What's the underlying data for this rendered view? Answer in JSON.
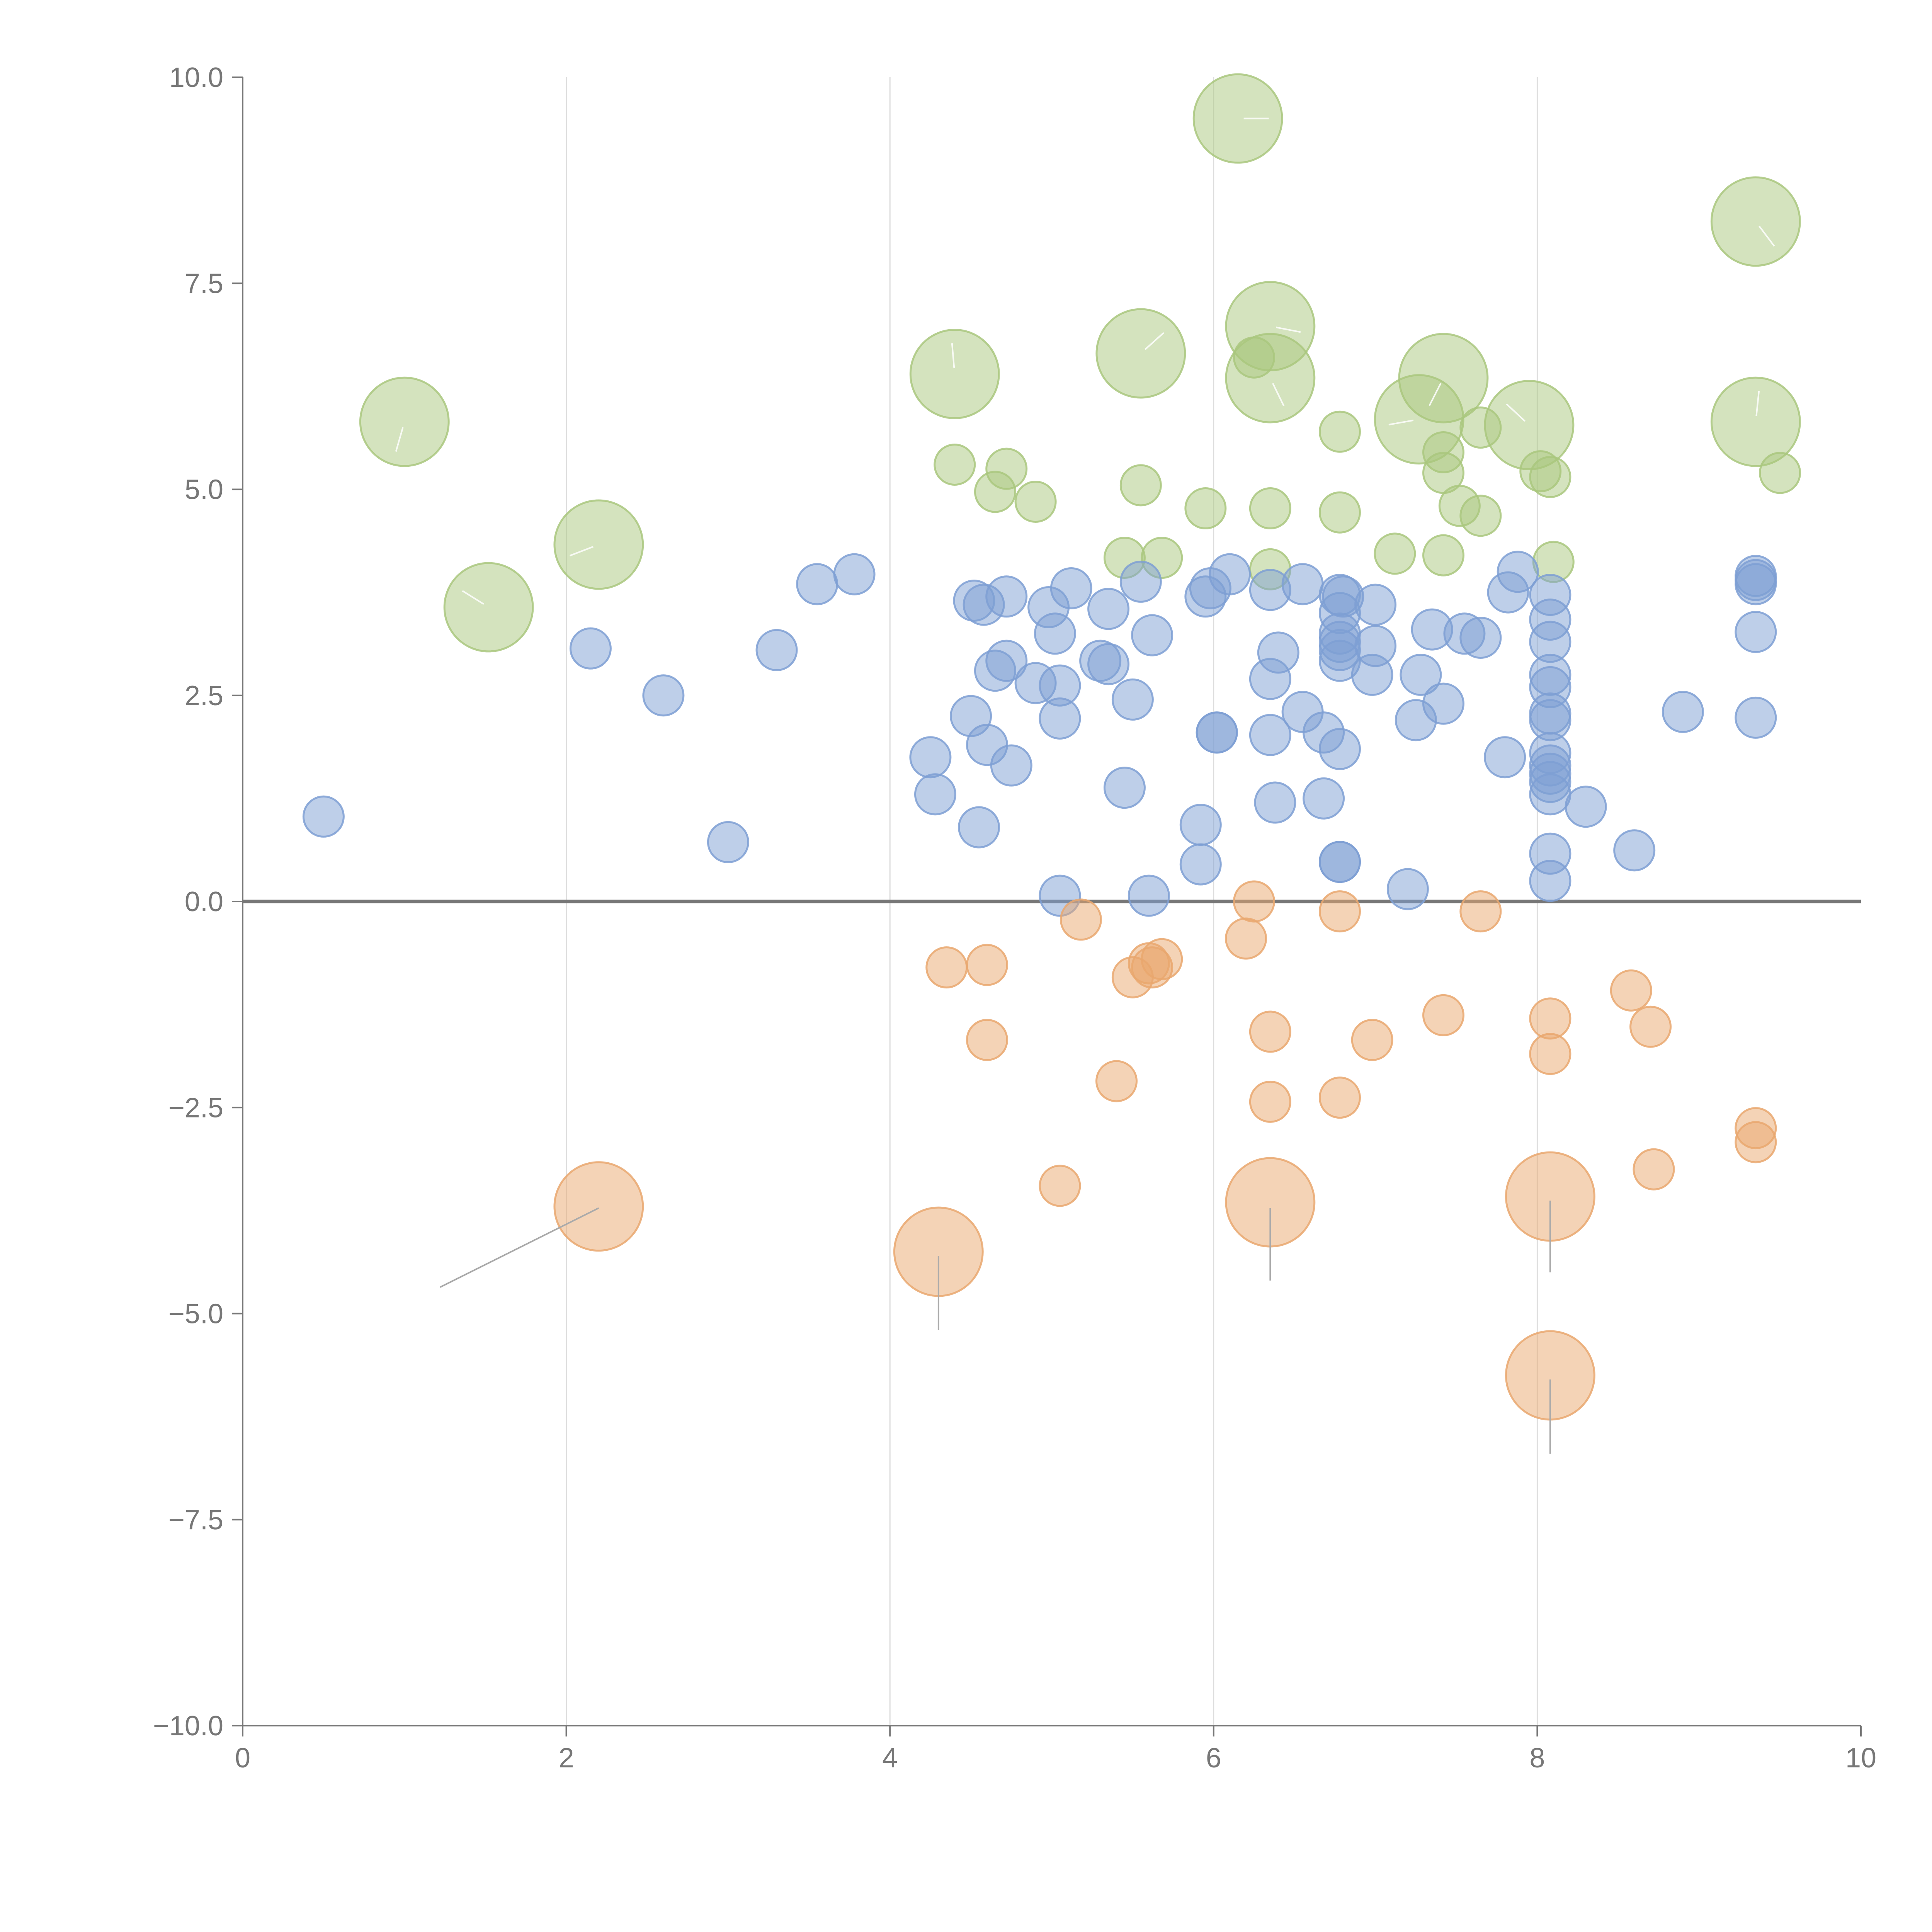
{
  "chart_data": {
    "type": "scatter",
    "title": "",
    "xlabel": "",
    "ylabel": "",
    "xlim": [
      0,
      10
    ],
    "ylim": [
      -10,
      10
    ],
    "xticks": [
      0,
      2,
      4,
      6,
      8,
      10
    ],
    "xtick_labels": [
      "0",
      "2",
      "4",
      "6",
      "8",
      "10"
    ],
    "yticks": [
      -10,
      -7.5,
      -5,
      -2.5,
      0,
      2.5,
      5,
      7.5,
      10
    ],
    "ytick_labels": [
      "−10.0",
      "−7.5",
      "−5.0",
      "−2.5",
      "0.0",
      "2.5",
      "5.0",
      "7.5",
      "10.0"
    ],
    "vertical_grid": true,
    "horizontal_grid": false,
    "zero_line": true,
    "colors": {
      "green": "#a9c77e",
      "blue": "#7e9fd3",
      "orange": "#e9a76e",
      "axis": "#777777",
      "grid": "#dddddd"
    },
    "series": [
      {
        "name": "green",
        "color": "#a9c77e",
        "points": [
          {
            "x": 6.15,
            "y": 9.5,
            "s": 2.2
          },
          {
            "x": 9.35,
            "y": 8.25,
            "s": 2.2
          },
          {
            "x": 1.0,
            "y": 5.82,
            "s": 2.2
          },
          {
            "x": 2.2,
            "y": 4.33,
            "s": 2.2
          },
          {
            "x": 1.52,
            "y": 3.57,
            "s": 2.2
          },
          {
            "x": 4.4,
            "y": 6.4,
            "s": 2.2
          },
          {
            "x": 5.55,
            "y": 6.65,
            "s": 2.2
          },
          {
            "x": 6.35,
            "y": 6.98,
            "s": 2.2
          },
          {
            "x": 6.35,
            "y": 6.35,
            "s": 2.2
          },
          {
            "x": 7.42,
            "y": 6.35,
            "s": 2.2
          },
          {
            "x": 7.27,
            "y": 5.85,
            "s": 2.2
          },
          {
            "x": 7.95,
            "y": 5.78,
            "s": 2.2
          },
          {
            "x": 9.35,
            "y": 5.82,
            "s": 2.2
          },
          {
            "x": 6.25,
            "y": 6.6,
            "s": 1
          },
          {
            "x": 6.78,
            "y": 5.7,
            "s": 1
          },
          {
            "x": 7.65,
            "y": 5.75,
            "s": 1
          },
          {
            "x": 7.42,
            "y": 5.45,
            "s": 1
          },
          {
            "x": 4.4,
            "y": 5.3,
            "s": 1
          },
          {
            "x": 4.72,
            "y": 5.25,
            "s": 1
          },
          {
            "x": 5.55,
            "y": 5.05,
            "s": 1
          },
          {
            "x": 4.65,
            "y": 4.97,
            "s": 1
          },
          {
            "x": 4.9,
            "y": 4.85,
            "s": 1
          },
          {
            "x": 5.95,
            "y": 4.77,
            "s": 1
          },
          {
            "x": 6.35,
            "y": 4.77,
            "s": 1
          },
          {
            "x": 6.78,
            "y": 4.72,
            "s": 1
          },
          {
            "x": 7.42,
            "y": 5.2,
            "s": 1
          },
          {
            "x": 7.52,
            "y": 4.8,
            "s": 1
          },
          {
            "x": 7.65,
            "y": 4.68,
            "s": 1
          },
          {
            "x": 8.02,
            "y": 5.22,
            "s": 1
          },
          {
            "x": 8.08,
            "y": 5.15,
            "s": 1
          },
          {
            "x": 9.5,
            "y": 5.2,
            "s": 1
          },
          {
            "x": 5.45,
            "y": 4.17,
            "s": 1
          },
          {
            "x": 5.68,
            "y": 4.17,
            "s": 1
          },
          {
            "x": 7.12,
            "y": 4.22,
            "s": 1
          },
          {
            "x": 7.42,
            "y": 4.2,
            "s": 1
          },
          {
            "x": 6.35,
            "y": 4.03,
            "s": 1
          },
          {
            "x": 8.1,
            "y": 4.12,
            "s": 1
          }
        ]
      },
      {
        "name": "blue",
        "color": "#7e9fd3",
        "points": [
          {
            "x": 0.5,
            "y": 1.03
          },
          {
            "x": 2.15,
            "y": 3.07
          },
          {
            "x": 2.6,
            "y": 2.5
          },
          {
            "x": 3.0,
            "y": 0.72
          },
          {
            "x": 3.3,
            "y": 3.05
          },
          {
            "x": 3.55,
            "y": 3.85
          },
          {
            "x": 3.78,
            "y": 3.97
          },
          {
            "x": 4.25,
            "y": 1.75
          },
          {
            "x": 4.28,
            "y": 1.3
          },
          {
            "x": 4.5,
            "y": 2.25
          },
          {
            "x": 4.52,
            "y": 3.65
          },
          {
            "x": 4.58,
            "y": 3.6
          },
          {
            "x": 4.6,
            "y": 1.9
          },
          {
            "x": 4.55,
            "y": 0.9
          },
          {
            "x": 4.65,
            "y": 2.8
          },
          {
            "x": 4.72,
            "y": 3.7
          },
          {
            "x": 4.72,
            "y": 2.92
          },
          {
            "x": 4.75,
            "y": 1.65
          },
          {
            "x": 4.9,
            "y": 2.65
          },
          {
            "x": 4.98,
            "y": 3.57
          },
          {
            "x": 5.02,
            "y": 3.25
          },
          {
            "x": 5.05,
            "y": 2.62
          },
          {
            "x": 5.05,
            "y": 2.22
          },
          {
            "x": 5.05,
            "y": 0.07
          },
          {
            "x": 5.12,
            "y": 3.8
          },
          {
            "x": 5.3,
            "y": 2.92
          },
          {
            "x": 5.35,
            "y": 2.88
          },
          {
            "x": 5.35,
            "y": 3.55
          },
          {
            "x": 5.45,
            "y": 1.38
          },
          {
            "x": 5.5,
            "y": 2.45
          },
          {
            "x": 5.55,
            "y": 3.88
          },
          {
            "x": 5.6,
            "y": 0.07
          },
          {
            "x": 5.62,
            "y": 3.23
          },
          {
            "x": 5.92,
            "y": 0.93
          },
          {
            "x": 5.92,
            "y": 0.45
          },
          {
            "x": 5.95,
            "y": 3.7
          },
          {
            "x": 5.98,
            "y": 3.8
          },
          {
            "x": 6.02,
            "y": 2.05
          },
          {
            "x": 6.02,
            "y": 2.05
          },
          {
            "x": 6.1,
            "y": 3.97
          },
          {
            "x": 6.35,
            "y": 3.78
          },
          {
            "x": 6.35,
            "y": 2.7
          },
          {
            "x": 6.35,
            "y": 2.02
          },
          {
            "x": 6.38,
            "y": 1.2
          },
          {
            "x": 6.4,
            "y": 3.02
          },
          {
            "x": 6.55,
            "y": 3.85
          },
          {
            "x": 6.55,
            "y": 2.3
          },
          {
            "x": 6.68,
            "y": 2.05
          },
          {
            "x": 6.68,
            "y": 1.25
          },
          {
            "x": 6.78,
            "y": 3.72
          },
          {
            "x": 6.78,
            "y": 3.5
          },
          {
            "x": 6.78,
            "y": 3.25
          },
          {
            "x": 6.78,
            "y": 3.15
          },
          {
            "x": 6.78,
            "y": 3.05
          },
          {
            "x": 6.78,
            "y": 2.92
          },
          {
            "x": 6.78,
            "y": 1.85
          },
          {
            "x": 6.78,
            "y": 0.48
          },
          {
            "x": 6.78,
            "y": 0.48
          },
          {
            "x": 6.8,
            "y": 3.7
          },
          {
            "x": 6.98,
            "y": 2.75
          },
          {
            "x": 7.0,
            "y": 3.1
          },
          {
            "x": 7.0,
            "y": 3.6
          },
          {
            "x": 7.2,
            "y": 0.15
          },
          {
            "x": 7.25,
            "y": 2.2
          },
          {
            "x": 7.28,
            "y": 2.75
          },
          {
            "x": 7.35,
            "y": 3.3
          },
          {
            "x": 7.42,
            "y": 2.4
          },
          {
            "x": 7.55,
            "y": 3.25
          },
          {
            "x": 7.65,
            "y": 3.2
          },
          {
            "x": 7.8,
            "y": 1.75
          },
          {
            "x": 7.82,
            "y": 3.75
          },
          {
            "x": 7.88,
            "y": 4.0
          },
          {
            "x": 8.08,
            "y": 3.72
          },
          {
            "x": 8.08,
            "y": 3.42
          },
          {
            "x": 8.08,
            "y": 3.15
          },
          {
            "x": 8.08,
            "y": 2.75
          },
          {
            "x": 8.08,
            "y": 2.6
          },
          {
            "x": 8.08,
            "y": 2.28
          },
          {
            "x": 8.08,
            "y": 2.2
          },
          {
            "x": 8.08,
            "y": 1.8
          },
          {
            "x": 8.08,
            "y": 1.65
          },
          {
            "x": 8.08,
            "y": 1.55
          },
          {
            "x": 8.08,
            "y": 1.45
          },
          {
            "x": 8.08,
            "y": 1.3
          },
          {
            "x": 8.08,
            "y": 0.58
          },
          {
            "x": 8.08,
            "y": 0.25
          },
          {
            "x": 8.3,
            "y": 1.15
          },
          {
            "x": 8.6,
            "y": 0.62
          },
          {
            "x": 8.9,
            "y": 2.3
          },
          {
            "x": 9.35,
            "y": 3.95
          },
          {
            "x": 9.35,
            "y": 3.9
          },
          {
            "x": 9.35,
            "y": 3.85
          },
          {
            "x": 9.35,
            "y": 3.27
          },
          {
            "x": 9.35,
            "y": 2.23
          }
        ]
      },
      {
        "name": "orange",
        "color": "#e9a76e",
        "points": [
          {
            "x": 6.25,
            "y": 0.0,
            "s": 1
          },
          {
            "x": 6.78,
            "y": -0.12,
            "s": 1
          },
          {
            "x": 7.65,
            "y": -0.12,
            "s": 1
          },
          {
            "x": 5.18,
            "y": -0.22,
            "s": 1
          },
          {
            "x": 6.2,
            "y": -0.45,
            "s": 1
          },
          {
            "x": 5.68,
            "y": -0.7,
            "s": 1
          },
          {
            "x": 5.6,
            "y": -0.75,
            "s": 1
          },
          {
            "x": 5.62,
            "y": -0.8,
            "s": 1
          },
          {
            "x": 4.35,
            "y": -0.8,
            "s": 1
          },
          {
            "x": 4.6,
            "y": -0.77,
            "s": 1
          },
          {
            "x": 5.5,
            "y": -0.92,
            "s": 1
          },
          {
            "x": 8.58,
            "y": -1.08,
            "s": 1
          },
          {
            "x": 8.08,
            "y": -1.42,
            "s": 1
          },
          {
            "x": 7.42,
            "y": -1.38,
            "s": 1
          },
          {
            "x": 8.7,
            "y": -1.52,
            "s": 1
          },
          {
            "x": 6.35,
            "y": -1.58,
            "s": 1
          },
          {
            "x": 6.98,
            "y": -1.68,
            "s": 1
          },
          {
            "x": 4.6,
            "y": -1.68,
            "s": 1
          },
          {
            "x": 8.08,
            "y": -1.85,
            "s": 1
          },
          {
            "x": 5.4,
            "y": -2.18,
            "s": 1
          },
          {
            "x": 6.35,
            "y": -2.43,
            "s": 1
          },
          {
            "x": 6.78,
            "y": -2.38,
            "s": 1
          },
          {
            "x": 9.35,
            "y": -2.75,
            "s": 1
          },
          {
            "x": 9.35,
            "y": -2.92,
            "s": 1
          },
          {
            "x": 8.72,
            "y": -3.25,
            "s": 1
          },
          {
            "x": 5.05,
            "y": -3.45,
            "s": 1
          },
          {
            "x": 2.2,
            "y": -3.7,
            "s": 2.2
          },
          {
            "x": 6.35,
            "y": -3.65,
            "s": 2.2
          },
          {
            "x": 8.08,
            "y": -3.58,
            "s": 2.2
          },
          {
            "x": 4.3,
            "y": -4.25,
            "s": 2.2
          },
          {
            "x": 8.08,
            "y": -5.75,
            "s": 2.2
          }
        ]
      }
    ],
    "leader_lines": [
      {
        "x1": 2.2,
        "y1": -3.72,
        "x2": 1.22,
        "y2": -4.68
      },
      {
        "x1": 4.3,
        "y1": -4.3,
        "x2": 4.3,
        "y2": -5.2
      },
      {
        "x1": 6.35,
        "y1": -3.72,
        "x2": 6.35,
        "y2": -4.6
      },
      {
        "x1": 8.08,
        "y1": -3.63,
        "x2": 8.08,
        "y2": -4.5
      },
      {
        "x1": 8.08,
        "y1": -5.8,
        "x2": 8.08,
        "y2": -6.7
      }
    ]
  }
}
